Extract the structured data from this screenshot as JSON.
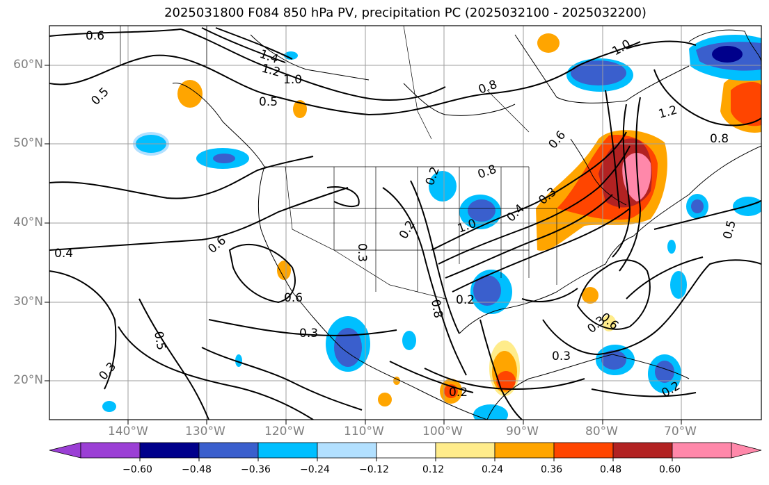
{
  "title": "2025031800 F084 850 hPa PV, precipitation PC (2025032100 - 2025032200)",
  "lat_labels": [
    "60°N",
    "50°N",
    "40°N",
    "30°N",
    "20°N"
  ],
  "lon_labels": [
    "140°W",
    "130°W",
    "120°W",
    "110°W",
    "100°W",
    "90°W",
    "80°W",
    "70°W"
  ],
  "contour_labels": [
    "0.6",
    "1.4",
    "1.2",
    "1.0",
    "0.5",
    "0.5",
    "0.8",
    "0.6",
    "0.8",
    "1.0",
    "1.2",
    "0.8",
    "0.2",
    "1.0",
    "0.3",
    "0.4",
    "0.3",
    "0.4",
    "0.6",
    "0.6",
    "0.3",
    "0.5",
    "0.3",
    "0.2",
    "0.8",
    "0.3",
    "0.6",
    "0.3",
    "0.2",
    "0.2",
    "0.5",
    "0.2"
  ],
  "colorbar": {
    "colors": [
      "#9b3fd5",
      "#00008b",
      "#3a5fcd",
      "#00bfff",
      "#b2e0ff",
      "#ffffff",
      "#ffec8b",
      "#ffa500",
      "#ff4500",
      "#b22222",
      "#ff88aa"
    ],
    "tick_labels": [
      "−0.60",
      "−0.48",
      "−0.36",
      "−0.24",
      "−0.12",
      "0.12",
      "0.24",
      "0.36",
      "0.48",
      "0.60"
    ]
  }
}
